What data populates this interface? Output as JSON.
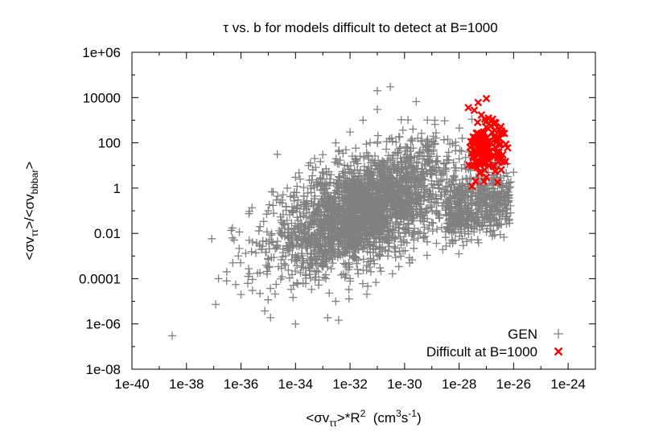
{
  "chart_data": {
    "type": "scatter",
    "title": "τ vs. b for models difficult to detect at B=1000",
    "xlabel": {
      "prefix": "<σv",
      "sub": "ττ",
      "mid": ">*R",
      "sup": "2",
      "units_open": "  (cm",
      "units_sup1": "3",
      "units_mid": "s",
      "units_sup2": "-1",
      "units_close": ")"
    },
    "ylabel": {
      "p1": "<σv",
      "sub1": "ττ",
      "p2": ">/<σv",
      "sub2": "bbbar",
      "p3": ">"
    },
    "x_scale": "log",
    "y_scale": "log",
    "xlim": [
      1e-40,
      1e-23
    ],
    "ylim": [
      1e-08,
      1000000.0
    ],
    "x_ticks": [
      "1e-40",
      "1e-38",
      "1e-36",
      "1e-34",
      "1e-32",
      "1e-30",
      "1e-28",
      "1e-26",
      "1e-24"
    ],
    "y_ticks": [
      "1e-08",
      "1e-06",
      "0.0001",
      "0.01",
      "1",
      "100",
      "10000",
      "1e+06"
    ],
    "grid": false,
    "legend_position": "bottom-right",
    "series": [
      {
        "name": "GEN",
        "marker": "plus",
        "color": "#808080",
        "points_note": "dense cloud; representative sample",
        "points": [
          [
            3e-39,
            3e-07
          ],
          [
            1.5e-37,
            0.0001
          ],
          [
            3e-37,
            0.0002
          ],
          [
            5e-37,
            0.0005
          ],
          [
            8e-37,
            0.001
          ],
          [
            1e-36,
            2e-05
          ],
          [
            2e-36,
            0.005
          ],
          [
            5e-36,
            0.02
          ],
          [
            1e-35,
            0.1
          ],
          [
            2e-35,
            0.3
          ],
          [
            5e-35,
            1.0
          ],
          [
            1e-34,
            3.0
          ],
          [
            3e-34,
            10.0
          ],
          [
            1e-33,
            30.0
          ],
          [
            3e-33,
            100.0
          ],
          [
            1e-32,
            300.0
          ],
          [
            3e-32,
            1000.0
          ],
          [
            1e-31,
            3000.0
          ],
          [
            1e-31,
            20000.0
          ],
          [
            3e-31,
            30000.0
          ],
          [
            1e-34,
            1e-06
          ],
          [
            3e-33,
            1e-05
          ],
          [
            1e-32,
            0.0001
          ],
          [
            1e-31,
            0.001
          ],
          [
            1e-30,
            0.01
          ],
          [
            1e-29,
            0.03
          ],
          [
            1e-28,
            0.1
          ],
          [
            1e-27,
            0.2
          ],
          [
            5e-27,
            0.3
          ],
          [
            1e-26,
            5.0
          ]
        ]
      },
      {
        "name": "Difficult at B=1000",
        "marker": "cross",
        "color": "#ff0000",
        "points": [
          [
            5e-28,
            6000
          ],
          [
            1e-27,
            9000
          ],
          [
            1.5e-27,
            900
          ],
          [
            2e-27,
            800
          ],
          [
            1e-27,
            500
          ],
          [
            8e-28,
            300
          ],
          [
            5e-28,
            30
          ],
          [
            3e-28,
            10
          ],
          [
            3e-28,
            1.2
          ],
          [
            4e-28,
            2
          ],
          [
            6e-28,
            5
          ],
          [
            1e-27,
            20
          ],
          [
            1.2e-27,
            60
          ],
          [
            1.5e-27,
            100
          ],
          [
            2e-27,
            200
          ],
          [
            2.5e-27,
            40
          ],
          [
            3e-27,
            80
          ],
          [
            4e-27,
            30
          ],
          [
            5e-27,
            15
          ],
          [
            6e-27,
            60
          ],
          [
            5e-28,
            120
          ],
          [
            7e-28,
            80
          ],
          [
            1e-27,
            40
          ],
          [
            1.3e-27,
            10
          ],
          [
            1.8e-27,
            25
          ],
          [
            2.2e-27,
            150
          ],
          [
            3e-27,
            400
          ],
          [
            2e-27,
            350
          ],
          [
            8e-28,
            50
          ],
          [
            1e-27,
            3
          ]
        ]
      }
    ]
  }
}
